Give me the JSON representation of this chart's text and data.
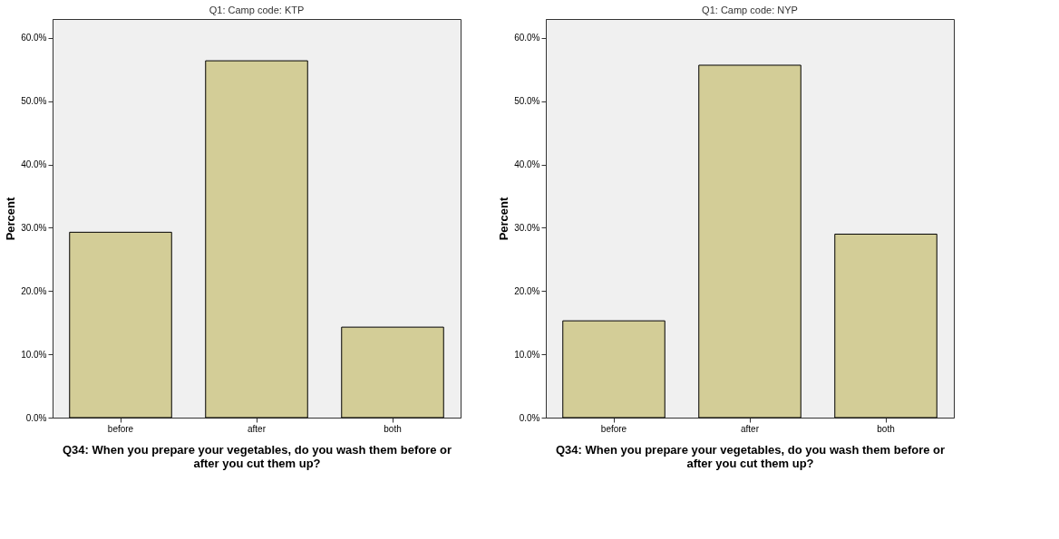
{
  "chart_data": [
    {
      "type": "bar",
      "title": "Q1: Camp code: KTP",
      "xlabel": "Q34: When you prepare your vegetables, do you wash them before or after you cut them up?",
      "ylabel": "Percent",
      "categories": [
        "before",
        "after",
        "both"
      ],
      "values": [
        29.3,
        56.4,
        14.3
      ],
      "color": "#d3cd97",
      "ylim": [
        0,
        63
      ],
      "yticks": [
        {
          "value": 0,
          "label": "0.0%"
        },
        {
          "value": 10,
          "label": "10.0%"
        },
        {
          "value": 20,
          "label": "20.0%"
        },
        {
          "value": 30,
          "label": "30.0%"
        },
        {
          "value": 40,
          "label": "40.0%"
        },
        {
          "value": 50,
          "label": "50.0%"
        },
        {
          "value": 60,
          "label": "60.0%"
        }
      ],
      "grid": false
    },
    {
      "type": "bar",
      "title": "Q1: Camp code: NYP",
      "xlabel": "Q34: When you prepare your vegetables, do you wash them before or after you cut them up?",
      "ylabel": "Percent",
      "categories": [
        "before",
        "after",
        "both"
      ],
      "values": [
        15.3,
        55.7,
        29.0
      ],
      "color": "#d3cd97",
      "ylim": [
        0,
        63
      ],
      "yticks": [
        {
          "value": 0,
          "label": "0.0%"
        },
        {
          "value": 10,
          "label": "10.0%"
        },
        {
          "value": 20,
          "label": "20.0%"
        },
        {
          "value": 30,
          "label": "30.0%"
        },
        {
          "value": 40,
          "label": "40.0%"
        },
        {
          "value": 50,
          "label": "50.0%"
        },
        {
          "value": 60,
          "label": "60.0%"
        }
      ],
      "grid": false
    }
  ]
}
